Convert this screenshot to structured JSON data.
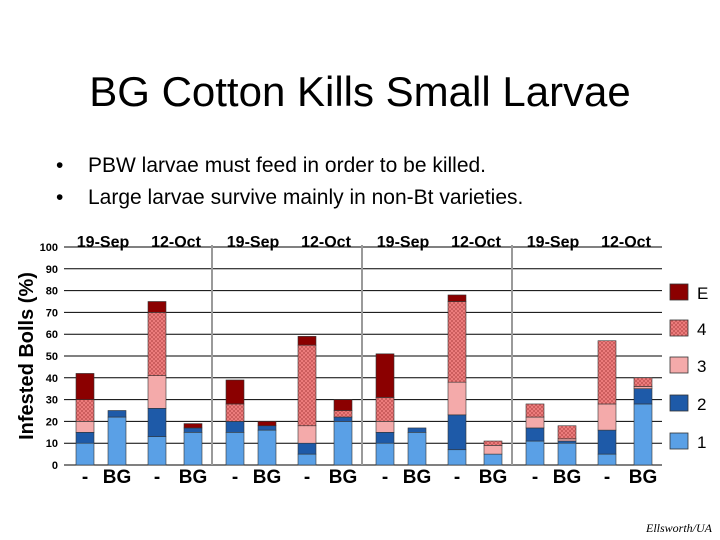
{
  "slide": {
    "title": "BG Cotton Kills Small Larvae",
    "bullets": [
      "PBW larvae must feed in order to be killed.",
      "Large larvae survive mainly in non-Bt varieties."
    ],
    "credit": "Ellsworth/UA"
  },
  "colors": {
    "E": "#8b0000",
    "4": "#f08080",
    "3": "#f4aaaa",
    "2": "#1e5aa8",
    "1": "#5aa0e6",
    "gridline": "#000000",
    "panel_divider": "#9a9a9a"
  },
  "chart_data": {
    "type": "bar",
    "stacked": true,
    "title": "",
    "ylabel": "Infested Bolls (%)",
    "xlabel": "",
    "ylim": [
      0,
      100
    ],
    "yticks": [
      0,
      10,
      20,
      30,
      40,
      50,
      60,
      70,
      80,
      90,
      100
    ],
    "legend_position": "right",
    "legend_order": [
      "E",
      "4",
      "3",
      "2",
      "1"
    ],
    "series_names": [
      "1",
      "2",
      "3",
      "4",
      "E"
    ],
    "panels": [
      {
        "dates": [
          "19-Sep",
          "12-Oct"
        ],
        "categories": [
          "-",
          "BG",
          "-",
          "BG"
        ],
        "stacks": [
          {
            "1": 10,
            "2": 5,
            "3": 5,
            "4": 10,
            "E": 12
          },
          {
            "1": 22,
            "2": 3,
            "3": 0,
            "4": 0,
            "E": 0
          },
          {
            "1": 13,
            "2": 13,
            "3": 15,
            "4": 29,
            "E": 5
          },
          {
            "1": 15,
            "2": 2,
            "3": 0,
            "4": 0,
            "E": 2
          }
        ]
      },
      {
        "dates": [
          "19-Sep",
          "12-Oct"
        ],
        "categories": [
          "-",
          "BG",
          "-",
          "BG"
        ],
        "stacks": [
          {
            "1": 15,
            "2": 5,
            "3": 0,
            "4": 8,
            "E": 11
          },
          {
            "1": 16,
            "2": 2,
            "3": 0,
            "4": 0,
            "E": 2
          },
          {
            "1": 5,
            "2": 5,
            "3": 8,
            "4": 37,
            "E": 4
          },
          {
            "1": 20,
            "2": 2,
            "3": 0,
            "4": 3,
            "E": 5
          }
        ]
      },
      {
        "dates": [
          "19-Sep",
          "12-Oct"
        ],
        "categories": [
          "-",
          "BG",
          "-",
          "BG"
        ],
        "stacks": [
          {
            "1": 10,
            "2": 5,
            "3": 5,
            "4": 11,
            "E": 20
          },
          {
            "1": 15,
            "2": 2,
            "3": 0,
            "4": 0,
            "E": 0
          },
          {
            "1": 7,
            "2": 16,
            "3": 15,
            "4": 37,
            "E": 3
          },
          {
            "1": 5,
            "2": 0,
            "3": 4,
            "4": 2,
            "E": 0
          }
        ]
      },
      {
        "dates": [
          "19-Sep",
          "12-Oct"
        ],
        "categories": [
          "-",
          "BG",
          "-",
          "BG"
        ],
        "stacks": [
          {
            "1": 11,
            "2": 6,
            "3": 5,
            "4": 6,
            "E": 0
          },
          {
            "1": 10,
            "2": 1,
            "3": 1,
            "4": 6,
            "E": 0
          },
          {
            "1": 5,
            "2": 11,
            "3": 12,
            "4": 29,
            "E": 0
          },
          {
            "1": 28,
            "2": 7,
            "3": 1,
            "4": 4,
            "E": 0
          }
        ]
      }
    ]
  }
}
